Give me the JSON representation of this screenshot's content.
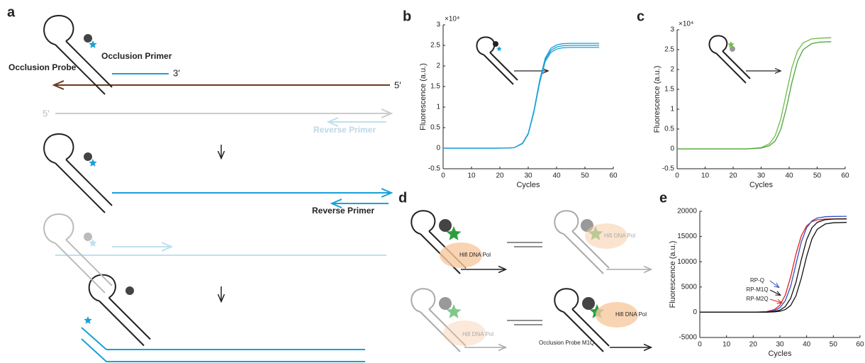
{
  "panel_labels": [
    "a",
    "b",
    "c",
    "d",
    "e"
  ],
  "diagram_a": {
    "occlusion_primer": "Occlusion Primer",
    "occlusion_probe": "Occlusion Probe",
    "three_prime": "3'",
    "five_prime_template": "5'",
    "five_prime_grey": "5'",
    "reverse_primer_light": "Reverse Primer",
    "reverse_primer": "Reverse Primer"
  },
  "diagram_d": {
    "pol_1": "Hifi DNA Pol",
    "pol_2": "Hifi DNA Pol",
    "pol_3": "Hifi DNA Pol",
    "pol_4": "Hifi DNA Pol",
    "probe_label": "Occlusion Probe M1Q"
  },
  "chart_data": [
    {
      "type": "line",
      "xlabel": "Cycles",
      "ylabel": "Fluorescence (a.u.)",
      "y_multiplier": "×10⁴",
      "x": [
        0,
        5,
        10,
        15,
        20,
        25,
        28,
        30,
        32,
        34,
        36,
        38,
        40,
        42,
        45,
        50,
        55
      ],
      "series": [
        {
          "color": "#1aa0d8",
          "values": [
            0,
            0,
            0,
            0,
            0,
            0.01,
            0.12,
            0.36,
            0.91,
            1.64,
            2.19,
            2.43,
            2.51,
            2.54,
            2.55,
            2.55,
            2.55
          ]
        },
        {
          "color": "#1aa0d8",
          "values": [
            0,
            0,
            0,
            0,
            0,
            0.01,
            0.12,
            0.35,
            0.89,
            1.61,
            2.15,
            2.38,
            2.46,
            2.49,
            2.5,
            2.5,
            2.5
          ]
        },
        {
          "color": "#1aa0d8",
          "values": [
            0,
            0,
            0,
            0,
            0,
            0.01,
            0.11,
            0.34,
            0.87,
            1.58,
            2.11,
            2.33,
            2.41,
            2.44,
            2.45,
            2.45,
            2.45
          ]
        }
      ],
      "xlim": [
        0,
        60
      ],
      "xticks": [
        0,
        10,
        20,
        30,
        40,
        50,
        60
      ],
      "ylim": [
        -0.5,
        3
      ],
      "yticks": [
        -0.5,
        0,
        0.5,
        1,
        1.5,
        2,
        2.5,
        3
      ]
    },
    {
      "type": "line",
      "xlabel": "Cycles",
      "ylabel": "Fluorescence (a.u.)",
      "y_multiplier": "×10⁴",
      "x": [
        0,
        5,
        10,
        15,
        20,
        25,
        30,
        33,
        35,
        37,
        39,
        41,
        43,
        45,
        48,
        51,
        55
      ],
      "series": [
        {
          "color": "#6bbd45",
          "values": [
            0,
            0,
            0,
            0,
            0,
            0,
            0.03,
            0.13,
            0.33,
            0.75,
            1.4,
            2.05,
            2.47,
            2.67,
            2.77,
            2.79,
            2.8
          ]
        },
        {
          "color": "#4da33a",
          "values": [
            0,
            0,
            0,
            0,
            0,
            0,
            0.02,
            0.08,
            0.2,
            0.49,
            1.02,
            1.68,
            2.21,
            2.5,
            2.65,
            2.69,
            2.7
          ]
        }
      ],
      "xlim": [
        0,
        60
      ],
      "xticks": [
        0,
        10,
        20,
        30,
        40,
        50,
        60
      ],
      "ylim": [
        -0.5,
        3
      ],
      "yticks": [
        -0.5,
        0,
        0.5,
        1,
        1.5,
        2,
        2.5,
        3
      ]
    },
    {
      "type": "line",
      "xlabel": "Cycles",
      "ylabel": "Fluorescence (a.u.)",
      "annotations": [
        "RP-Q",
        "RP-M1Q",
        "RP-M2Q"
      ],
      "x": [
        0,
        5,
        10,
        15,
        20,
        25,
        28,
        30,
        32,
        34,
        36,
        38,
        40,
        42,
        44,
        47,
        50,
        55
      ],
      "series": [
        {
          "color": "#e02020",
          "values": [
            0,
            0,
            0,
            0,
            0,
            124,
            545,
            1400,
            3375,
            6990,
            11510,
            15130,
            17100,
            17960,
            18300,
            18450,
            18490,
            18500
          ]
        },
        {
          "color": "#3050c0",
          "values": [
            0,
            0,
            0,
            0,
            0,
            77,
            342,
            905,
            2265,
            5110,
            9500,
            13890,
            16740,
            18100,
            18660,
            18920,
            18980,
            19000
          ]
        },
        {
          "color": "#111111",
          "values": [
            0,
            0,
            0,
            0,
            0,
            36,
            159,
            425,
            1110,
            2740,
            5930,
            10400,
            14380,
            16740,
            17810,
            18340,
            18460,
            18500
          ]
        },
        {
          "color": "#111111",
          "values": [
            0,
            0,
            0,
            0,
            0,
            16,
            72,
            196,
            520,
            1340,
            3250,
            6720,
            11080,
            14550,
            16450,
            17480,
            17730,
            17800
          ]
        }
      ],
      "xlim": [
        0,
        60
      ],
      "xticks": [
        0,
        10,
        20,
        30,
        40,
        50,
        60
      ],
      "ylim": [
        -5000,
        20000
      ],
      "yticks": [
        -5000,
        0,
        5000,
        10000,
        15000,
        20000
      ]
    }
  ]
}
